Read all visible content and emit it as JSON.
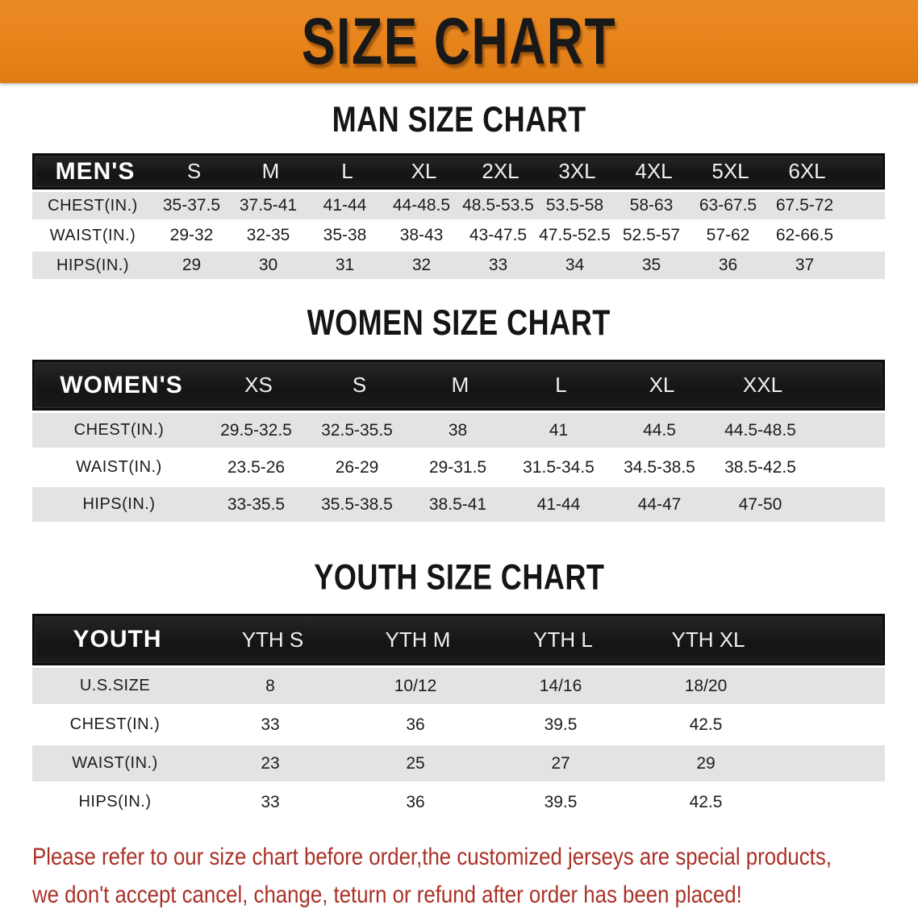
{
  "banner": {
    "title": "SIZE CHART",
    "background_color": "#E8831B",
    "text_color": "#181818"
  },
  "sections": {
    "men": {
      "heading": "MAN SIZE CHART",
      "table": {
        "header_label": "MEN'S",
        "columns": [
          "S",
          "M",
          "L",
          "XL",
          "2XL",
          "3XL",
          "4XL",
          "5XL",
          "6XL"
        ],
        "rows": [
          {
            "label": "CHEST(IN.)",
            "values": [
              "35-37.5",
              "37.5-41",
              "41-44",
              "44-48.5",
              "48.5-53.5",
              "53.5-58",
              "58-63",
              "63-67.5",
              "67.5-72"
            ]
          },
          {
            "label": "WAIST(IN.)",
            "values": [
              "29-32",
              "32-35",
              "35-38",
              "38-43",
              "43-47.5",
              "47.5-52.5",
              "52.5-57",
              "57-62",
              "62-66.5"
            ]
          },
          {
            "label": "HIPS(IN.)",
            "values": [
              "29",
              "30",
              "31",
              "32",
              "33",
              "34",
              "35",
              "36",
              "37"
            ]
          }
        ]
      }
    },
    "women": {
      "heading": "WOMEN SIZE CHART",
      "table": {
        "header_label": "WOMEN'S",
        "columns": [
          "XS",
          "S",
          "M",
          "L",
          "XL",
          "XXL"
        ],
        "rows": [
          {
            "label": "CHEST(IN.)",
            "values": [
              "29.5-32.5",
              "32.5-35.5",
              "38",
              "41",
              "44.5",
              "44.5-48.5"
            ]
          },
          {
            "label": "WAIST(IN.)",
            "values": [
              "23.5-26",
              "26-29",
              "29-31.5",
              "31.5-34.5",
              "34.5-38.5",
              "38.5-42.5"
            ]
          },
          {
            "label": "HIPS(IN.)",
            "values": [
              "33-35.5",
              "35.5-38.5",
              "38.5-41",
              "41-44",
              "44-47",
              "47-50"
            ]
          }
        ]
      }
    },
    "youth": {
      "heading": "YOUTH SIZE CHART",
      "table": {
        "header_label": "YOUTH",
        "columns": [
          "YTH S",
          "YTH M",
          "YTH L",
          "YTH XL"
        ],
        "rows": [
          {
            "label": "U.S.SIZE",
            "values": [
              "8",
              "10/12",
              "14/16",
              "18/20"
            ]
          },
          {
            "label": "CHEST(IN.)",
            "values": [
              "33",
              "36",
              "39.5",
              "42.5"
            ]
          },
          {
            "label": "WAIST(IN.)",
            "values": [
              "23",
              "25",
              "27",
              "29"
            ]
          },
          {
            "label": "HIPS(IN.)",
            "values": [
              "33",
              "36",
              "39.5",
              "42.5"
            ]
          }
        ]
      }
    }
  },
  "footnote": {
    "color": "#A93127",
    "lines": [
      "Please refer to our size chart before order,the customized jerseys are special products,",
      "we don't accept cancel, change, teturn or refund after order has been placed!"
    ]
  },
  "colors": {
    "banner_orange": "#E8831B",
    "header_bar_black": "#161616",
    "stripe_gray": "#E3E3E3",
    "footnote_red": "#A93127"
  }
}
